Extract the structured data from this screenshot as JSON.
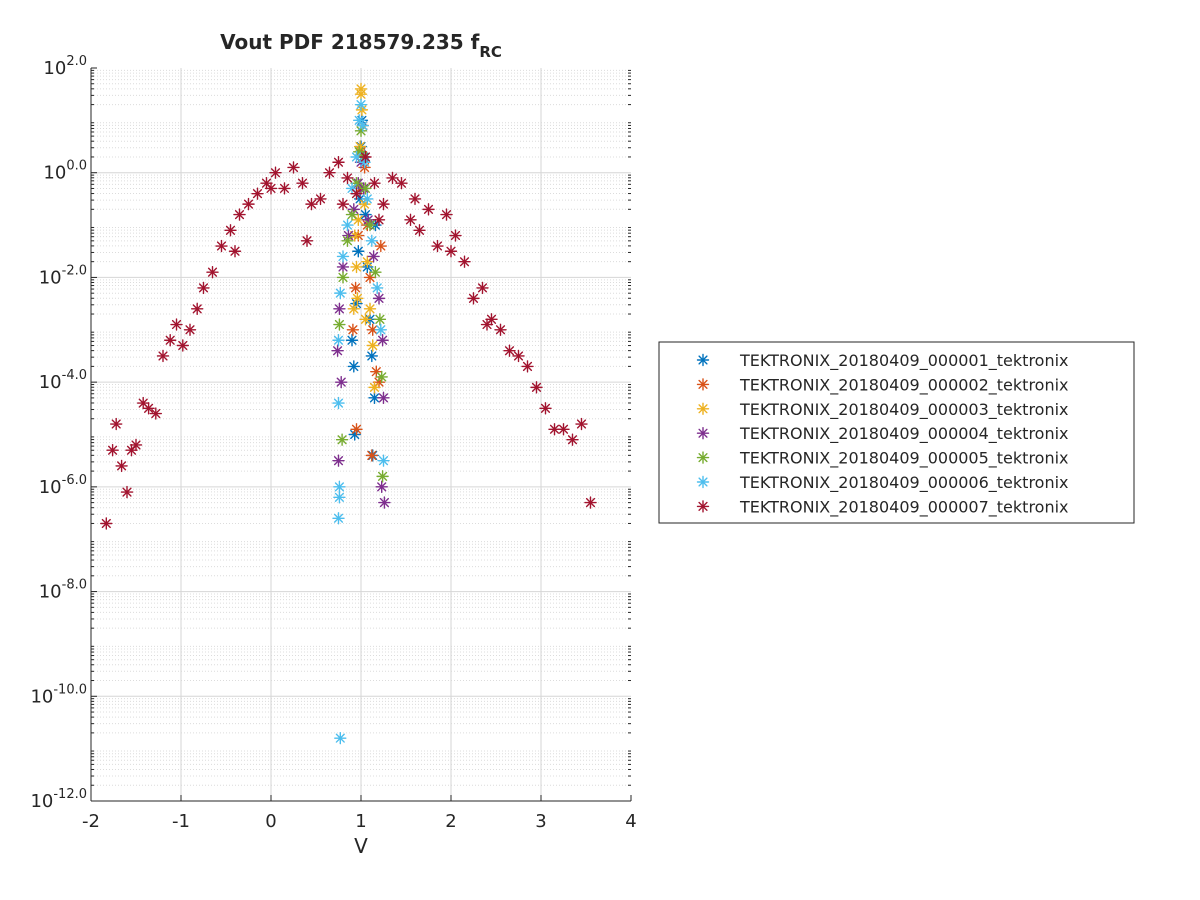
{
  "chart_data": {
    "type": "scatter",
    "title": {
      "main": "Vout PDF 218579.235 f",
      "subscript": "RC"
    },
    "xlabel": "V",
    "ylabel": "",
    "xlim": [
      -2,
      4
    ],
    "ylim_log10": [
      -12,
      2
    ],
    "y_scale": "log",
    "x_ticks": [
      "-2",
      "-1",
      "0",
      "1",
      "2",
      "3",
      "4"
    ],
    "y_ticks": [
      {
        "base": "10",
        "exp": "2.0"
      },
      {
        "base": "10",
        "exp": "0.0"
      },
      {
        "base": "10",
        "exp": "-2.0"
      },
      {
        "base": "10",
        "exp": "-4.0"
      },
      {
        "base": "10",
        "exp": "-6.0"
      },
      {
        "base": "10",
        "exp": "-8.0"
      },
      {
        "base": "10",
        "exp": "-10.0"
      },
      {
        "base": "10",
        "exp": "-12.0"
      }
    ],
    "grid": true,
    "marker": "*",
    "legend_position": "outside-right",
    "series": [
      {
        "name": "TEKTRONIX_20180409_000001_tektronix",
        "color": "#0072bd",
        "x": [
          0.92,
          0.95,
          0.97,
          0.99,
          1.0,
          1.01,
          1.03,
          1.05,
          1.07,
          1.1,
          1.12,
          1.15,
          0.93,
          1.13,
          0.9,
          1.16
        ],
        "y_log10": [
          -3.7,
          -2.5,
          -1.5,
          -0.5,
          0.5,
          1.0,
          0.3,
          -0.8,
          -1.8,
          -2.8,
          -3.5,
          -4.3,
          -5.0,
          -5.4,
          -3.2,
          -1.0
        ]
      },
      {
        "name": "TEKTRONIX_20180409_000002_tektronix",
        "color": "#d95319",
        "x": [
          0.91,
          0.94,
          0.97,
          0.99,
          1.0,
          1.02,
          1.04,
          1.07,
          1.1,
          1.13,
          1.17,
          1.2,
          0.95,
          1.12,
          1.22
        ],
        "y_log10": [
          -3.0,
          -2.2,
          -1.2,
          -0.3,
          0.4,
          0.9,
          0.1,
          -1.0,
          -2.0,
          -3.0,
          -3.8,
          -4.0,
          -4.9,
          -5.4,
          -1.4
        ]
      },
      {
        "name": "TEKTRONIX_20180409_000003_tektronix",
        "color": "#edb120",
        "x": [
          0.92,
          0.95,
          0.97,
          0.99,
          1.0,
          1.0,
          1.01,
          1.02,
          1.04,
          1.07,
          1.1,
          1.13,
          0.96,
          1.05,
          0.93,
          1.15
        ],
        "y_log10": [
          -2.6,
          -1.8,
          -0.9,
          0.5,
          1.5,
          1.6,
          1.2,
          0.3,
          -0.6,
          -1.7,
          -2.6,
          -3.3,
          -2.4,
          -2.8,
          -1.2,
          -4.1
        ]
      },
      {
        "name": "TEKTRONIX_20180409_000004_tektronix",
        "color": "#7e2f8e",
        "x": [
          0.74,
          0.76,
          0.8,
          0.86,
          0.92,
          0.97,
          1.0,
          1.03,
          1.08,
          1.14,
          1.2,
          1.24,
          1.25,
          1.26,
          0.75,
          0.78,
          1.23
        ],
        "y_log10": [
          -3.4,
          -2.6,
          -1.8,
          -1.2,
          -0.7,
          -0.2,
          0.2,
          -0.3,
          -0.9,
          -1.6,
          -2.4,
          -3.2,
          -4.3,
          -6.3,
          -5.5,
          -4.0,
          -6.0
        ]
      },
      {
        "name": "TEKTRONIX_20180409_000005_tektronix",
        "color": "#77ac30",
        "x": [
          0.76,
          0.8,
          0.85,
          0.9,
          0.95,
          0.98,
          1.0,
          1.02,
          1.05,
          1.1,
          1.16,
          1.21,
          1.23,
          0.79,
          1.24
        ],
        "y_log10": [
          -2.9,
          -2.0,
          -1.3,
          -0.8,
          -0.2,
          0.4,
          0.8,
          0.3,
          -0.3,
          -1.0,
          -1.9,
          -2.8,
          -3.9,
          -5.1,
          -5.8
        ]
      },
      {
        "name": "TEKTRONIX_20180409_000006_tektronix",
        "color": "#4dbeee",
        "x": [
          0.75,
          0.77,
          0.8,
          0.85,
          0.9,
          0.95,
          0.98,
          1.0,
          1.02,
          1.04,
          1.07,
          1.12,
          1.18,
          1.22,
          0.75,
          0.76,
          0.75,
          0.76,
          1.25,
          0.77
        ],
        "y_log10": [
          -3.2,
          -2.3,
          -1.6,
          -1.0,
          -0.3,
          0.3,
          1.0,
          1.3,
          0.9,
          0.2,
          -0.5,
          -1.3,
          -2.2,
          -3.0,
          -4.4,
          -6.2,
          -6.6,
          -6.0,
          -5.5,
          -10.8
        ]
      },
      {
        "name": "TEKTRONIX_20180409_000007_tektronix",
        "color": "#a2142f",
        "x": [
          -1.83,
          -1.76,
          -1.72,
          -1.66,
          -1.6,
          -1.55,
          -1.5,
          -1.42,
          -1.36,
          -1.28,
          -1.2,
          -1.12,
          -1.05,
          -0.98,
          -0.9,
          -0.82,
          -0.75,
          -0.65,
          -0.55,
          -0.45,
          -0.35,
          -0.25,
          -0.15,
          -0.05,
          0.05,
          0.15,
          0.25,
          0.35,
          0.45,
          0.55,
          0.65,
          0.75,
          0.85,
          0.95,
          1.05,
          1.15,
          1.25,
          1.35,
          1.45,
          1.55,
          1.65,
          1.75,
          1.85,
          1.95,
          2.05,
          2.15,
          2.25,
          2.35,
          2.45,
          2.55,
          2.65,
          2.75,
          2.85,
          2.95,
          3.05,
          3.15,
          3.25,
          3.35,
          3.45,
          3.55,
          -0.4,
          0.0,
          0.4,
          0.8,
          1.2,
          1.6,
          2.0,
          2.4
        ],
        "y_log10": [
          -6.7,
          -5.3,
          -4.8,
          -5.6,
          -6.1,
          -5.3,
          -5.2,
          -4.4,
          -4.5,
          -4.6,
          -3.5,
          -3.2,
          -2.9,
          -3.3,
          -3.0,
          -2.6,
          -2.2,
          -1.9,
          -1.4,
          -1.1,
          -0.8,
          -0.6,
          -0.4,
          -0.2,
          0.0,
          -0.3,
          0.1,
          -0.2,
          -0.6,
          -0.5,
          0.0,
          0.2,
          -0.1,
          -0.4,
          0.3,
          -0.2,
          -0.6,
          -0.1,
          -0.2,
          -0.9,
          -1.1,
          -0.7,
          -1.4,
          -0.8,
          -1.2,
          -1.7,
          -2.4,
          -2.2,
          -2.8,
          -3.0,
          -3.4,
          -3.5,
          -3.7,
          -4.1,
          -4.5,
          -4.9,
          -4.9,
          -5.1,
          -4.8,
          -6.3,
          -1.5,
          -0.3,
          -1.3,
          -0.6,
          -0.9,
          -0.5,
          -1.5,
          -2.9
        ]
      }
    ]
  }
}
